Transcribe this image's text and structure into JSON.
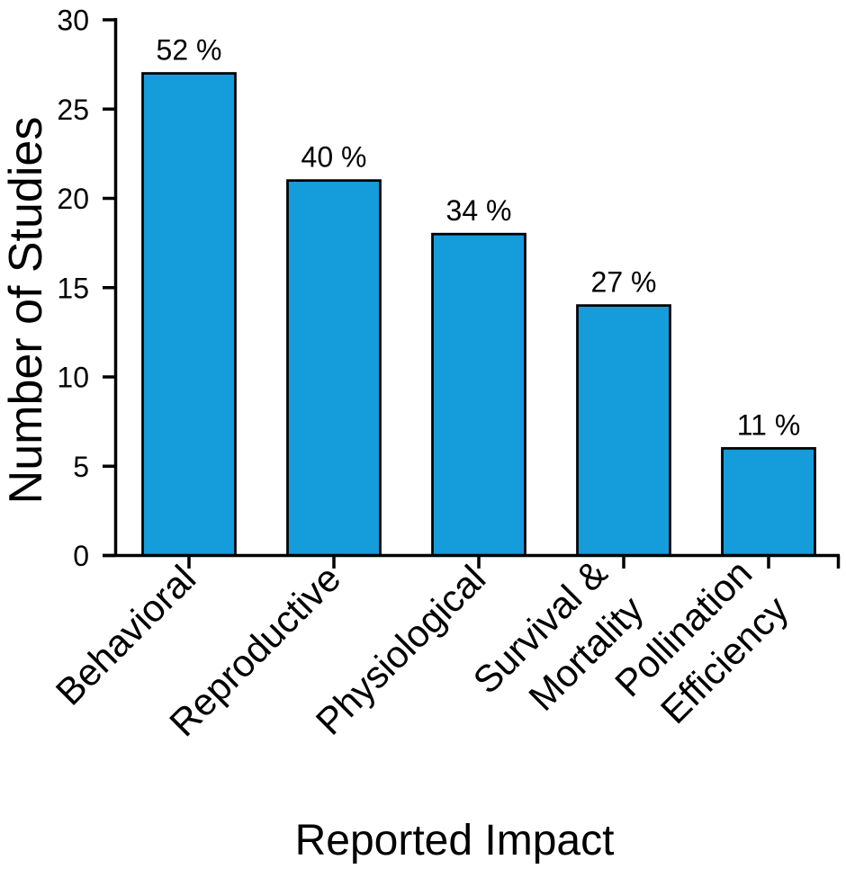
{
  "chart_data": {
    "type": "bar",
    "title": "",
    "xlabel": "Reported Impact",
    "ylabel": "Number of Studies",
    "categories": [
      "Behavioral",
      "Reproductive",
      "Physiological",
      "Survival &\nMortality",
      "Pollination\nEfficiency"
    ],
    "values": [
      27,
      21,
      18,
      14,
      6
    ],
    "bar_labels": [
      "52 %",
      "40 %",
      "34 %",
      "27 %",
      "11 %"
    ],
    "ylim": [
      0,
      30
    ],
    "yticks": [
      0,
      5,
      10,
      15,
      20,
      25,
      30
    ],
    "grid": false,
    "legend": "none",
    "bar_fill": "#149CDB",
    "bar_stroke": "#000000",
    "axis_color": "#000000",
    "background": "#ffffff"
  }
}
